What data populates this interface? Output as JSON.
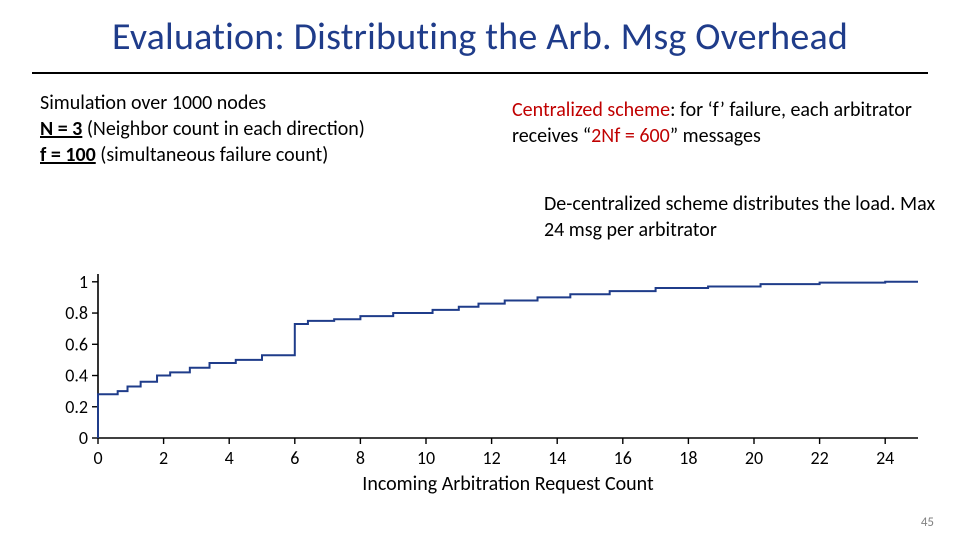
{
  "title": "Evaluation: Distributing the Arb. Msg Overhead",
  "left_block": {
    "line1": "Simulation over 1000 nodes",
    "line2_a": "N = 3",
    "line2_b": " (Neighbor count in each direction)",
    "line3_a": "f = 100",
    "line3_b": " (simultaneous failure count)"
  },
  "right_block_1": {
    "part_a": "Centralized scheme",
    "part_b": ": for ‘f’ failure, each arbitrator receives “",
    "part_c": "2Nf = 600",
    "part_d": "” messages"
  },
  "right_block_2": "De-centralized scheme distributes the load. Max 24 msg per arbitrator",
  "slide_number": "45",
  "chart": {
    "type": "step-line",
    "xlabel": "Incoming Arbitration Request Count",
    "xlim": [
      0,
      25
    ],
    "ylim": [
      0,
      1.05
    ],
    "xticks": [
      0,
      2,
      4,
      6,
      8,
      10,
      12,
      14,
      16,
      18,
      20,
      22,
      24
    ],
    "yticks": [
      0,
      0.2,
      0.4,
      0.6,
      0.8,
      1
    ],
    "line_color": "#1f3c8a",
    "line_width": 2,
    "axis_color": "#000000",
    "tick_color": "#000000",
    "background_color": "#ffffff",
    "xlabel_fontsize": 20,
    "tick_fontsize": 18,
    "step_points": [
      [
        0,
        0
      ],
      [
        0,
        0.28
      ],
      [
        0.6,
        0.28
      ],
      [
        0.6,
        0.3
      ],
      [
        0.9,
        0.3
      ],
      [
        0.9,
        0.33
      ],
      [
        1.3,
        0.33
      ],
      [
        1.3,
        0.36
      ],
      [
        1.8,
        0.36
      ],
      [
        1.8,
        0.4
      ],
      [
        2.2,
        0.4
      ],
      [
        2.2,
        0.42
      ],
      [
        2.8,
        0.42
      ],
      [
        2.8,
        0.45
      ],
      [
        3.4,
        0.45
      ],
      [
        3.4,
        0.48
      ],
      [
        4.2,
        0.48
      ],
      [
        4.2,
        0.5
      ],
      [
        5.0,
        0.5
      ],
      [
        5.0,
        0.53
      ],
      [
        6.0,
        0.53
      ],
      [
        6.0,
        0.73
      ],
      [
        6.4,
        0.73
      ],
      [
        6.4,
        0.75
      ],
      [
        7.2,
        0.75
      ],
      [
        7.2,
        0.76
      ],
      [
        8.0,
        0.76
      ],
      [
        8.0,
        0.78
      ],
      [
        9.0,
        0.78
      ],
      [
        9.0,
        0.8
      ],
      [
        10.2,
        0.8
      ],
      [
        10.2,
        0.82
      ],
      [
        11.0,
        0.82
      ],
      [
        11.0,
        0.84
      ],
      [
        11.6,
        0.84
      ],
      [
        11.6,
        0.86
      ],
      [
        12.4,
        0.86
      ],
      [
        12.4,
        0.88
      ],
      [
        13.4,
        0.88
      ],
      [
        13.4,
        0.9
      ],
      [
        14.4,
        0.9
      ],
      [
        14.4,
        0.92
      ],
      [
        15.6,
        0.92
      ],
      [
        15.6,
        0.94
      ],
      [
        17.0,
        0.94
      ],
      [
        17.0,
        0.96
      ],
      [
        18.6,
        0.96
      ],
      [
        18.6,
        0.97
      ],
      [
        20.2,
        0.97
      ],
      [
        20.2,
        0.985
      ],
      [
        22.0,
        0.985
      ],
      [
        22.0,
        0.995
      ],
      [
        24.0,
        0.995
      ],
      [
        24.0,
        1.0
      ],
      [
        25.0,
        1.0
      ]
    ]
  }
}
